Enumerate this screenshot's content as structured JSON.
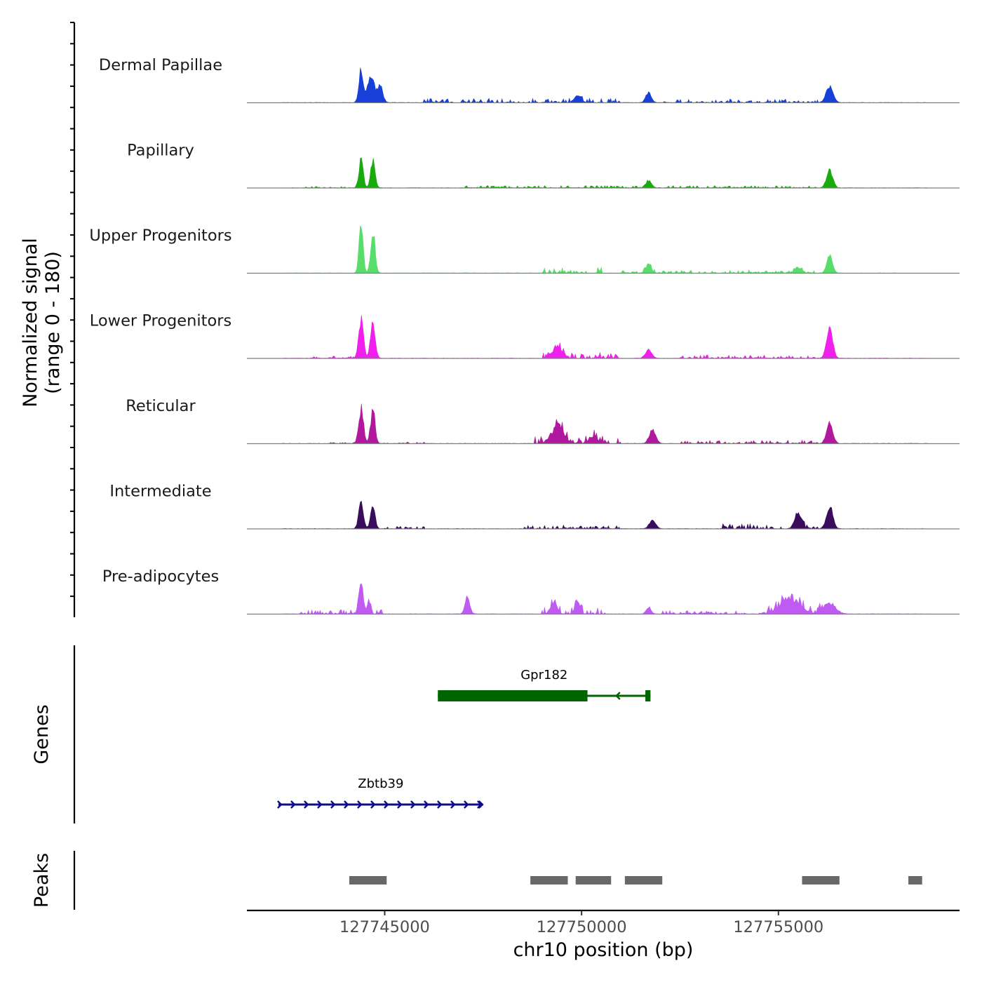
{
  "chart_data": {
    "type": "area",
    "title": "",
    "chromosome": "chr10",
    "xlabel": "chr10 position (bp)",
    "ylabel_line1": "Normalized signal",
    "ylabel_line2": "(range 0 - 180)",
    "yrange": [
      0,
      180
    ],
    "xlim": [
      127741500,
      127759600
    ],
    "xticks": [
      127745000,
      127750000,
      127755000
    ],
    "xtick_labels": [
      "127745000",
      "127750000",
      "127755000"
    ],
    "data_extent": [
      127742400,
      127758800
    ],
    "track_labels": {
      "genes": "Genes",
      "peaks": "Peaks"
    },
    "tracks": [
      {
        "name": "Dermal Papillae",
        "color": "#1640d8",
        "peaks": [
          [
            127744400,
            120,
            55
          ],
          [
            127744650,
            100,
            80
          ],
          [
            127744880,
            60,
            70
          ],
          [
            127749900,
            25,
            80
          ],
          [
            127751700,
            35,
            70
          ],
          [
            127756300,
            55,
            90
          ]
        ],
        "noise": [
          [
            127746000,
            127748000,
            15
          ],
          [
            127748000,
            127751000,
            15
          ],
          [
            127752000,
            127756000,
            12
          ]
        ]
      },
      {
        "name": "Papillary",
        "color": "#1aaa0e",
        "peaks": [
          [
            127744400,
            100,
            55
          ],
          [
            127744700,
            100,
            55
          ],
          [
            127751700,
            25,
            70
          ],
          [
            127756300,
            60,
            80
          ]
        ],
        "noise": [
          [
            127743000,
            127744000,
            5
          ],
          [
            127747000,
            127756000,
            8
          ]
        ]
      },
      {
        "name": "Upper Progenitors",
        "color": "#59dd6a",
        "peaks": [
          [
            127744400,
            180,
            50
          ],
          [
            127744700,
            150,
            55
          ],
          [
            127751700,
            30,
            70
          ],
          [
            127755500,
            20,
            80
          ],
          [
            127756300,
            65,
            70
          ]
        ],
        "noise": [
          [
            127749000,
            127750500,
            20
          ],
          [
            127751000,
            127756000,
            10
          ]
        ]
      },
      {
        "name": "Lower Progenitors",
        "color": "#f020ec",
        "peaks": [
          [
            127744400,
            140,
            60
          ],
          [
            127744700,
            130,
            60
          ],
          [
            127749400,
            40,
            120
          ],
          [
            127751700,
            30,
            80
          ],
          [
            127756300,
            100,
            80
          ]
        ],
        "noise": [
          [
            127743000,
            127744200,
            7
          ],
          [
            127749000,
            127751000,
            20
          ],
          [
            127752500,
            127756000,
            12
          ]
        ]
      },
      {
        "name": "Reticular",
        "color": "#b0189e",
        "peaks": [
          [
            127744400,
            120,
            60
          ],
          [
            127744700,
            120,
            55
          ],
          [
            127749400,
            60,
            150
          ],
          [
            127750300,
            25,
            100
          ],
          [
            127751800,
            50,
            80
          ],
          [
            127756300,
            70,
            80
          ]
        ],
        "noise": [
          [
            127743500,
            127746000,
            6
          ],
          [
            127748800,
            127751000,
            25
          ],
          [
            127752500,
            127756000,
            12
          ]
        ]
      },
      {
        "name": "Intermediate",
        "color": "#3a0c5c",
        "peaks": [
          [
            127744400,
            90,
            60
          ],
          [
            127744700,
            80,
            55
          ],
          [
            127751800,
            30,
            80
          ],
          [
            127755500,
            55,
            80
          ],
          [
            127756300,
            80,
            80
          ]
        ],
        "noise": [
          [
            127745000,
            127746000,
            8
          ],
          [
            127748500,
            127751000,
            12
          ],
          [
            127753500,
            127756000,
            18
          ]
        ]
      },
      {
        "name": "Pre-adipocytes",
        "color": "#bf5bf2",
        "peaks": [
          [
            127744400,
            110,
            55
          ],
          [
            127744600,
            50,
            40
          ],
          [
            127747100,
            60,
            60
          ],
          [
            127749300,
            40,
            80
          ],
          [
            127749900,
            50,
            60
          ],
          [
            127751700,
            25,
            60
          ],
          [
            127755300,
            50,
            250
          ],
          [
            127756300,
            40,
            150
          ]
        ],
        "noise": [
          [
            127742800,
            127745000,
            15
          ],
          [
            127749000,
            127750600,
            25
          ],
          [
            127752000,
            127754200,
            12
          ],
          [
            127754500,
            127756600,
            30
          ]
        ]
      }
    ],
    "genes": [
      {
        "name": "Zbtb39",
        "start": 127742300,
        "end": 127747500,
        "strand": "+",
        "color": "#0d0d8a",
        "row": 2,
        "exons": []
      },
      {
        "name": "Gpr182",
        "start": 127746350,
        "end": 127751750,
        "strand": "-",
        "color": "#006400",
        "row": 1,
        "exons": [
          [
            127746350,
            127750150,
            1.0
          ],
          [
            127751620,
            127751750,
            1.0
          ]
        ]
      }
    ],
    "peaks": [
      [
        127744100,
        127745050
      ],
      [
        127748700,
        127749650
      ],
      [
        127749850,
        127750750
      ],
      [
        127751100,
        127752050
      ],
      [
        127755600,
        127756550
      ],
      [
        127758300,
        127758650
      ]
    ]
  }
}
